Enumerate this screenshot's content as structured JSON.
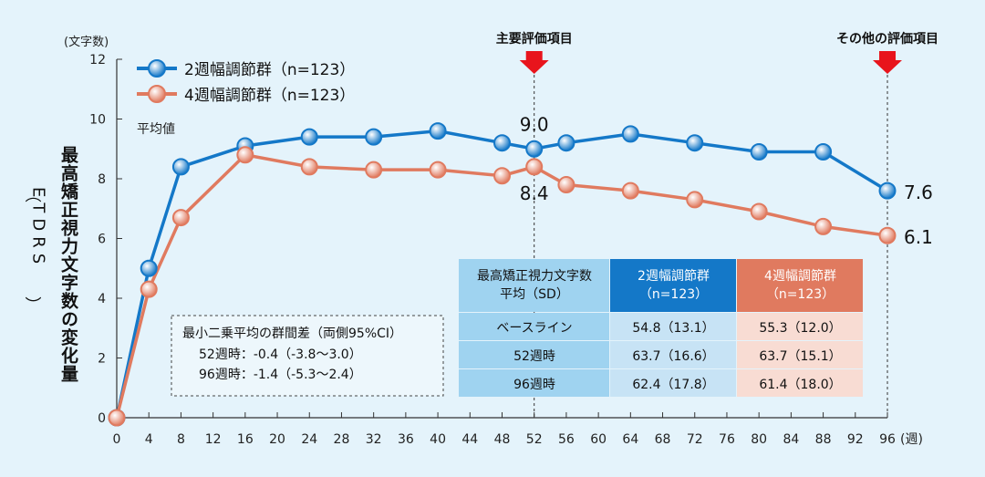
{
  "chart_data": {
    "type": "line",
    "x_unit": "(週)",
    "y_unit": "(文字数)",
    "ylabel": "最高矯正視力文字数の変化量（ETDRS）",
    "ylabel_main": "最高矯正視力文字数の変化量",
    "ylabel_paren": "ETDRS",
    "mean_label": "平均値",
    "xlim": [
      0,
      96
    ],
    "ylim": [
      0,
      12
    ],
    "x_ticks": [
      0,
      4,
      8,
      12,
      16,
      20,
      24,
      28,
      32,
      36,
      40,
      44,
      48,
      52,
      56,
      60,
      64,
      68,
      72,
      76,
      80,
      84,
      88,
      92,
      96
    ],
    "y_ticks": [
      0,
      2,
      4,
      6,
      8,
      10,
      12
    ],
    "series": [
      {
        "name": "2週幅調節群（n=123）",
        "color": "#1478c8",
        "x": [
          0,
          4,
          8,
          16,
          24,
          32,
          40,
          48,
          52,
          56,
          64,
          72,
          80,
          88,
          96
        ],
        "y": [
          0,
          5.0,
          8.4,
          9.1,
          9.4,
          9.4,
          9.6,
          9.2,
          9.0,
          9.2,
          9.5,
          9.2,
          8.9,
          8.9,
          7.6
        ]
      },
      {
        "name": "4週幅調節群（n=123）",
        "color": "#e07a5f",
        "x": [
          0,
          4,
          8,
          16,
          24,
          32,
          40,
          48,
          52,
          56,
          64,
          72,
          80,
          88,
          96
        ],
        "y": [
          0,
          4.3,
          6.7,
          8.8,
          8.4,
          8.3,
          8.3,
          8.1,
          8.4,
          7.8,
          7.6,
          7.3,
          6.9,
          6.4,
          6.1
        ]
      }
    ],
    "value_labels": [
      {
        "text": "9.0",
        "x": 52,
        "series": 0
      },
      {
        "text": "8.4",
        "x": 52,
        "series": 1
      },
      {
        "text": "7.6",
        "x": 96,
        "series": 0
      },
      {
        "text": "6.1",
        "x": 96,
        "series": 1
      }
    ],
    "markers": [
      {
        "label": "主要評価項目",
        "x": 52
      },
      {
        "label": "その他の評価項目",
        "x": 96
      }
    ],
    "stats_box": {
      "title": "最小二乗平均の群間差（両側95%CI）",
      "lines": [
        "52週時：-0.4（-3.8～3.0）",
        "96週時：-1.4（-5.3～2.4）"
      ]
    },
    "table": {
      "header": [
        "最高矯正視力文字数\n平均（SD）",
        "2週幅調節群\n（n=123）",
        "4週幅調節群\n（n=123）"
      ],
      "rows": [
        [
          "ベースライン",
          "54.8（13.1）",
          "55.3（12.0）"
        ],
        [
          "52週時",
          "63.7（16.6）",
          "63.7（15.1）"
        ],
        [
          "96週時",
          "62.4（17.8）",
          "61.4（18.0）"
        ]
      ],
      "colors": {
        "header_label": "#9fd3f0",
        "header_series1": "#1478c8",
        "header_series2": "#e07a5f",
        "row_label": "#9fd3f0",
        "row_series1": "#c7e3f5",
        "row_series2": "#f8dcd3"
      }
    }
  }
}
